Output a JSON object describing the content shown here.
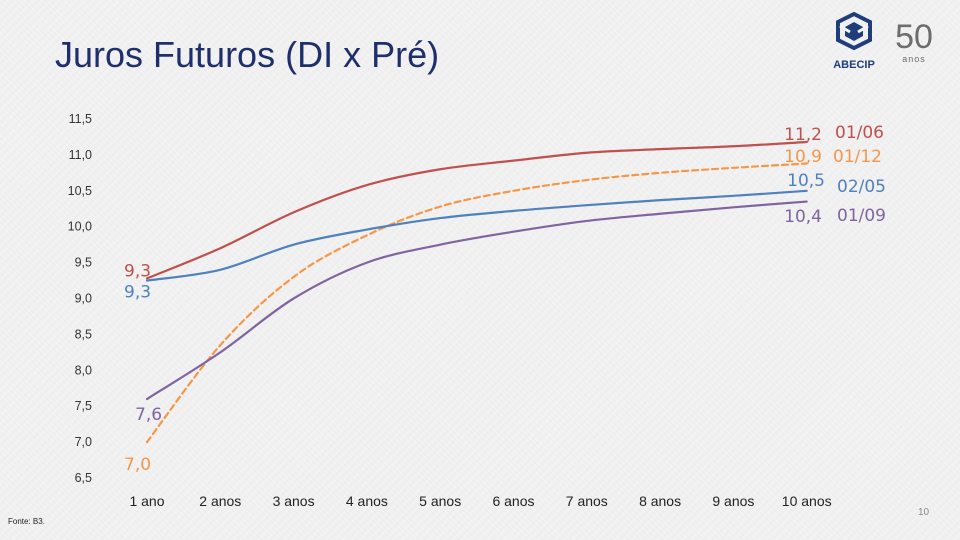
{
  "slide": {
    "title": "Juros Futuros (DI x Pré)",
    "source": "Fonte: B3.",
    "page_number": "10",
    "logo_text": "ABECIP",
    "logo_anniversary": "50",
    "logo_anniversary_word": "anos"
  },
  "colors": {
    "title": "#1f2f6b",
    "red": "#c0504d",
    "orange": "#f79646",
    "blue": "#4f81bd",
    "purple": "#8064a2"
  },
  "chart_data": {
    "type": "line",
    "categories": [
      "1 ano",
      "2 anos",
      "3 anos",
      "4 anos",
      "5 anos",
      "6 anos",
      "7 anos",
      "8 anos",
      "9 anos",
      "10 anos"
    ],
    "y_tick_labels": [
      "11,5",
      "11,0",
      "10,5",
      "10,0",
      "9,5",
      "9,0",
      "8,5",
      "8,0",
      "7,5",
      "7,0",
      "6,5"
    ],
    "ylim": [
      6.5,
      11.5
    ],
    "grid": false,
    "legend_placement": "right end of lines",
    "series": [
      {
        "name": "01/06",
        "color": "#c0504d",
        "dashed": false,
        "values": [
          9.28,
          9.7,
          10.2,
          10.58,
          10.8,
          10.92,
          11.03,
          11.08,
          11.12,
          11.18
        ],
        "start_label": "9,3",
        "end_label": "11,2"
      },
      {
        "name": "01/12",
        "color": "#f79646",
        "dashed": true,
        "values": [
          7.0,
          8.35,
          9.3,
          9.88,
          10.28,
          10.5,
          10.65,
          10.75,
          10.82,
          10.88
        ],
        "start_label": "7,0",
        "end_label": "10,9"
      },
      {
        "name": "02/05",
        "color": "#4f81bd",
        "dashed": false,
        "values": [
          9.25,
          9.4,
          9.75,
          9.96,
          10.12,
          10.22,
          10.3,
          10.37,
          10.43,
          10.5
        ],
        "start_label": "9,3",
        "end_label": "10,5"
      },
      {
        "name": "01/09",
        "color": "#8064a2",
        "dashed": false,
        "values": [
          7.6,
          8.25,
          9.0,
          9.5,
          9.75,
          9.93,
          10.08,
          10.18,
          10.27,
          10.35
        ],
        "start_label": "7,6",
        "end_label": "10,4"
      }
    ]
  }
}
